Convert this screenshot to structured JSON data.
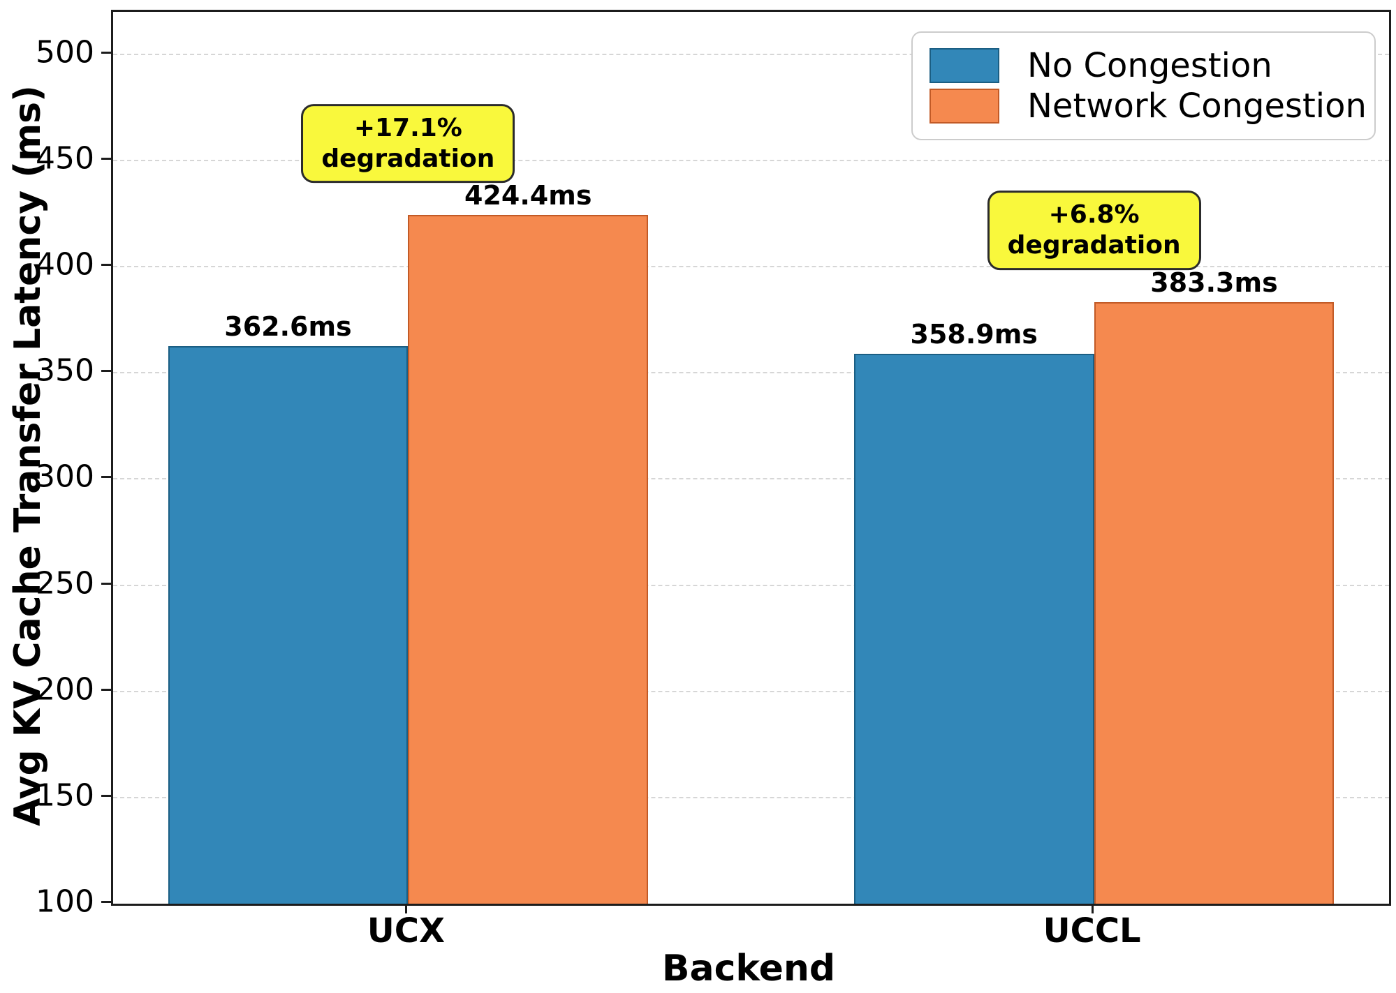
{
  "chart_data": {
    "type": "bar",
    "title": "",
    "xlabel": "Backend",
    "ylabel": "Avg KV Cache Transfer Latency (ms)",
    "categories": [
      "UCX",
      "UCCL"
    ],
    "series": [
      {
        "name": "No Congestion",
        "color": "#3287B8",
        "edge_color": "#1B5E83",
        "values": [
          362.6,
          358.9
        ],
        "bar_labels": [
          "362.6ms",
          "358.9ms"
        ],
        "offset": -0.175
      },
      {
        "name": "Network Congestion",
        "color": "#F5894F",
        "edge_color": "#C25A26",
        "values": [
          424.4,
          383.3
        ],
        "bar_labels": [
          "424.4ms",
          "383.3ms"
        ],
        "offset": 0.175
      }
    ],
    "annotations": [
      {
        "line1": "+17.1%",
        "line2": "degradation",
        "x_category": 0,
        "y_value": 458,
        "bg": "#F9F83C"
      },
      {
        "line1": "+6.8%",
        "line2": "degradation",
        "x_category": 1,
        "y_value": 417,
        "bg": "#F9F83C"
      }
    ],
    "x_positions": [
      0,
      1
    ],
    "bar_width": 0.35,
    "xlim": [
      -0.43,
      1.43
    ],
    "ylim": [
      100,
      520
    ],
    "yticks": [
      100,
      150,
      200,
      250,
      300,
      350,
      400,
      450,
      500
    ],
    "grid": "horizontal dashed",
    "legend_position": "upper right"
  }
}
